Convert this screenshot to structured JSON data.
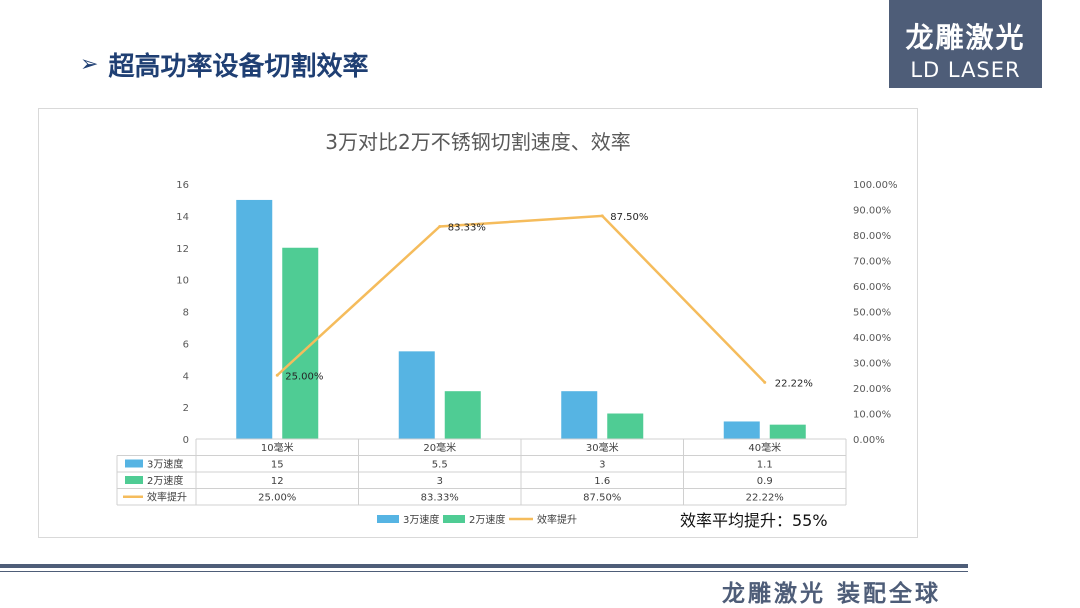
{
  "header": {
    "arrow": "➢",
    "title": "超高功率设备切割效率"
  },
  "logo": {
    "cn": "龙雕激光",
    "en": "LD LASER"
  },
  "footer": {
    "slogan": "龙雕激光 装配全球"
  },
  "colors": {
    "series1": "#56b4e3",
    "series2": "#4fcc94",
    "line": "#f5bc5c",
    "accent": "#4e5d78",
    "title": "#1f3f73"
  },
  "chart_data": {
    "type": "bar",
    "title": "3万对比2万不锈钢切割速度、效率",
    "categories": [
      "10毫米",
      "20毫米",
      "30毫米",
      "40毫米"
    ],
    "series": [
      {
        "name": "3万速度",
        "values": [
          15,
          5.5,
          3,
          1.1
        ],
        "display": [
          "15",
          "5.5",
          "3",
          "1.1"
        ],
        "axis": "left"
      },
      {
        "name": "2万速度",
        "values": [
          12,
          3,
          1.6,
          0.9
        ],
        "display": [
          "12",
          "3",
          "1.6",
          "0.9"
        ],
        "axis": "left"
      },
      {
        "name": "效率提升",
        "type": "line",
        "values": [
          25.0,
          83.33,
          87.5,
          22.22
        ],
        "display": [
          "25.00%",
          "83.33%",
          "87.50%",
          "22.22%"
        ],
        "axis": "right"
      }
    ],
    "y_left": {
      "range": [
        0,
        16
      ],
      "ticks": [
        "0",
        "2",
        "4",
        "6",
        "8",
        "10",
        "12",
        "14",
        "16"
      ]
    },
    "y_right": {
      "range": [
        0,
        100
      ],
      "ticks": [
        "0.00%",
        "10.00%",
        "20.00%",
        "30.00%",
        "40.00%",
        "50.00%",
        "60.00%",
        "70.00%",
        "80.00%",
        "90.00%",
        "100.00%"
      ]
    },
    "data_table": true,
    "legend": "bottom",
    "annotation": "效率平均提升：55%",
    "grid": false
  }
}
